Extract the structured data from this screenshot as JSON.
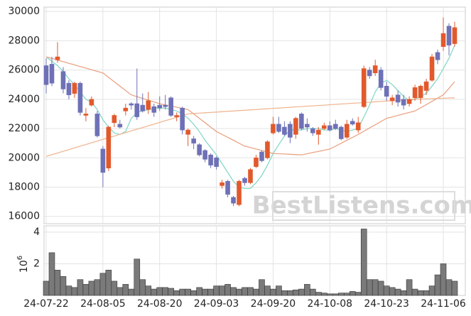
{
  "chart_data": [
    {
      "type": "candlestick",
      "watermark": "BestListens.com",
      "up_color": "#e2592c",
      "down_color": "#6e71b6",
      "grid": true,
      "ylim": [
        15500,
        30300
      ],
      "yticks": [
        16000,
        18000,
        20000,
        22000,
        24000,
        26000,
        28000,
        30000
      ],
      "open": [
        26300,
        26400,
        26700,
        25900,
        25100,
        24400,
        25100,
        22900,
        23600,
        23000,
        20600,
        19300,
        22400,
        22300,
        23200,
        23700,
        23700,
        23600,
        23300,
        23500,
        23600,
        23600,
        24100,
        22800,
        23400,
        21600,
        21300,
        20900,
        20500,
        20200,
        20000,
        18100,
        18400,
        17300,
        16800,
        18600,
        18300,
        19400,
        20400,
        20000,
        21700,
        22300,
        22100,
        22300,
        21600,
        23000,
        22300,
        22000,
        21600,
        22000,
        22200,
        22300,
        22100,
        21400,
        22500,
        21900,
        23500,
        26000,
        25800,
        26000,
        24900,
        23900,
        24300,
        24000,
        23700,
        24100,
        24100,
        24600,
        25300,
        27200,
        27600,
        29000,
        27800
      ],
      "high": [
        26800,
        26900,
        27900,
        26200,
        25300,
        25200,
        25200,
        23400,
        24200,
        23200,
        20800,
        22200,
        23000,
        22600,
        23700,
        23800,
        26100,
        24400,
        24500,
        23700,
        24200,
        24300,
        24200,
        23100,
        23500,
        22000,
        21500,
        21000,
        20600,
        20300,
        20100,
        18500,
        18500,
        17400,
        18500,
        18700,
        19300,
        20200,
        20500,
        21200,
        22800,
        22800,
        22500,
        22500,
        22800,
        23100,
        22700,
        22100,
        22100,
        22400,
        22500,
        22600,
        22200,
        22600,
        22700,
        22800,
        26300,
        26200,
        26700,
        26200,
        25200,
        24300,
        24600,
        24300,
        24200,
        25000,
        25000,
        25400,
        27100,
        27400,
        29600,
        29200,
        29300
      ],
      "low": [
        24400,
        24900,
        26500,
        24400,
        24000,
        24100,
        22900,
        22500,
        23500,
        21400,
        18000,
        19100,
        22100,
        22000,
        22900,
        23300,
        22600,
        23100,
        23000,
        22800,
        23200,
        23300,
        22800,
        22500,
        21600,
        20800,
        20600,
        20100,
        19700,
        19300,
        19200,
        17900,
        17300,
        16700,
        16700,
        18100,
        18200,
        19300,
        19700,
        19900,
        21600,
        21700,
        21500,
        21000,
        21300,
        21900,
        21800,
        21500,
        20900,
        21900,
        21800,
        21900,
        21200,
        21300,
        22200,
        21700,
        23400,
        25400,
        25600,
        24600,
        23900,
        23600,
        23500,
        23300,
        23500,
        23900,
        23700,
        24300,
        25200,
        26400,
        27300,
        27000,
        27600
      ],
      "close": [
        25000,
        25100,
        26900,
        24700,
        24300,
        25100,
        23100,
        23000,
        24000,
        21500,
        19000,
        22100,
        22900,
        22100,
        23400,
        23600,
        22800,
        23200,
        23900,
        23100,
        23400,
        23500,
        22900,
        22900,
        21900,
        21900,
        21000,
        20200,
        19900,
        19500,
        19400,
        18300,
        17500,
        16900,
        18400,
        18300,
        19200,
        20000,
        19800,
        21100,
        22300,
        21800,
        21600,
        21400,
        22700,
        22000,
        22100,
        21700,
        21900,
        22200,
        21900,
        22000,
        21300,
        22300,
        22300,
        22400,
        26100,
        25600,
        26300,
        24800,
        24200,
        24100,
        23800,
        23600,
        24000,
        24800,
        24900,
        25200,
        26900,
        26700,
        28500,
        27700,
        28900
      ],
      "series": [
        {
          "type": "line",
          "color": "#86d8c8",
          "values": [
            26900,
            26600,
            26300,
            25900,
            25400,
            25000,
            24500,
            24000,
            23800,
            23300,
            22600,
            22100,
            21700,
            21600,
            21800,
            22700,
            23100,
            23200,
            23300,
            23400,
            23400,
            23400,
            23300,
            23200,
            23000,
            22700,
            22300,
            21800,
            21200,
            20700,
            20200,
            19600,
            19000,
            18400,
            18000,
            17900,
            17900,
            18300,
            18800,
            19500,
            20300,
            20900,
            21500,
            21900,
            21900,
            21900,
            22000,
            22000,
            22000,
            21900,
            21900,
            22000,
            21900,
            21800,
            21900,
            22000,
            22800,
            23600,
            24500,
            25100,
            25300,
            25000,
            24600,
            24200,
            23900,
            24000,
            24200,
            24400,
            24900,
            25400,
            26100,
            26800,
            27700
          ]
        },
        {
          "type": "line",
          "color": "#eaa485",
          "values": [
            26900,
            26790,
            26680,
            26570,
            26460,
            26350,
            26240,
            26130,
            26020,
            25910,
            25800,
            25500,
            25200,
            24900,
            24600,
            24300,
            24180,
            24060,
            23940,
            23820,
            23700,
            23620,
            23540,
            23460,
            23380,
            23300,
            23000,
            22700,
            22400,
            22100,
            21800,
            21600,
            21400,
            21200,
            21000,
            20800,
            20700,
            20600,
            20500,
            20400,
            20300,
            20280,
            20260,
            20240,
            20220,
            20200,
            20280,
            20360,
            20440,
            20520,
            20600,
            20800,
            21000,
            21200,
            21400,
            21600,
            21820,
            22040,
            22260,
            22480,
            22700,
            22800,
            22900,
            23000,
            23100,
            23200,
            23420,
            23640,
            23860,
            24080,
            24300,
            24750,
            25200
          ]
        },
        {
          "type": "line",
          "color": "#efb893",
          "values": [
            20100,
            20220,
            20330,
            20450,
            20560,
            20680,
            20800,
            20910,
            21030,
            21140,
            21260,
            21380,
            21490,
            21610,
            21720,
            21840,
            21960,
            22070,
            22190,
            22300,
            22420,
            22540,
            22650,
            22770,
            22880,
            23000,
            23030,
            23050,
            23080,
            23100,
            23130,
            23150,
            23180,
            23200,
            23230,
            23250,
            23280,
            23300,
            23330,
            23350,
            23380,
            23400,
            23430,
            23450,
            23480,
            23500,
            23530,
            23550,
            23580,
            23600,
            23630,
            23650,
            23680,
            23700,
            23730,
            23750,
            23780,
            23800,
            23830,
            23850,
            23880,
            23900,
            23930,
            23950,
            23980,
            24000,
            24010,
            24030,
            24040,
            24060,
            24070,
            24090,
            24100
          ]
        }
      ]
    },
    {
      "type": "bar",
      "color": "#7a7a7a",
      "grid": true,
      "ylabel": {
        "base": "10",
        "exponent": "6"
      },
      "ylim": [
        0,
        4.4
      ],
      "yticks": [
        2,
        4
      ],
      "categories": [
        "24-07-22",
        null,
        null,
        null,
        null,
        null,
        null,
        null,
        null,
        null,
        "24-08-05",
        null,
        null,
        null,
        null,
        null,
        null,
        null,
        null,
        null,
        "24-08-20",
        null,
        null,
        null,
        null,
        null,
        null,
        null,
        null,
        null,
        "24-09-03",
        null,
        null,
        null,
        null,
        null,
        null,
        null,
        null,
        null,
        "24-09-20",
        null,
        null,
        null,
        null,
        null,
        null,
        null,
        null,
        null,
        "24-10-08",
        null,
        null,
        null,
        null,
        null,
        null,
        null,
        null,
        null,
        "24-10-23",
        null,
        null,
        null,
        null,
        null,
        null,
        null,
        null,
        null,
        "24-11-06",
        null,
        null
      ],
      "values": [
        0.9,
        2.7,
        1.6,
        1.2,
        0.6,
        0.5,
        1.0,
        0.7,
        0.9,
        1.0,
        1.4,
        1.6,
        0.9,
        0.5,
        0.7,
        0.4,
        2.3,
        1.0,
        0.6,
        0.4,
        0.5,
        0.5,
        0.45,
        0.3,
        0.4,
        0.4,
        0.3,
        0.5,
        0.4,
        0.4,
        0.6,
        0.6,
        0.7,
        0.5,
        0.4,
        0.5,
        0.5,
        0.4,
        1.0,
        0.6,
        0.4,
        0.6,
        0.3,
        0.3,
        0.35,
        0.4,
        0.7,
        0.4,
        0.2,
        0.15,
        0.1,
        0.1,
        0.15,
        0.15,
        0.25,
        0.2,
        4.2,
        1.0,
        1.0,
        0.9,
        0.6,
        0.5,
        0.4,
        0.3,
        1.0,
        0.4,
        0.3,
        0.3,
        0.6,
        1.3,
        2.0,
        1.0,
        0.9
      ]
    }
  ]
}
